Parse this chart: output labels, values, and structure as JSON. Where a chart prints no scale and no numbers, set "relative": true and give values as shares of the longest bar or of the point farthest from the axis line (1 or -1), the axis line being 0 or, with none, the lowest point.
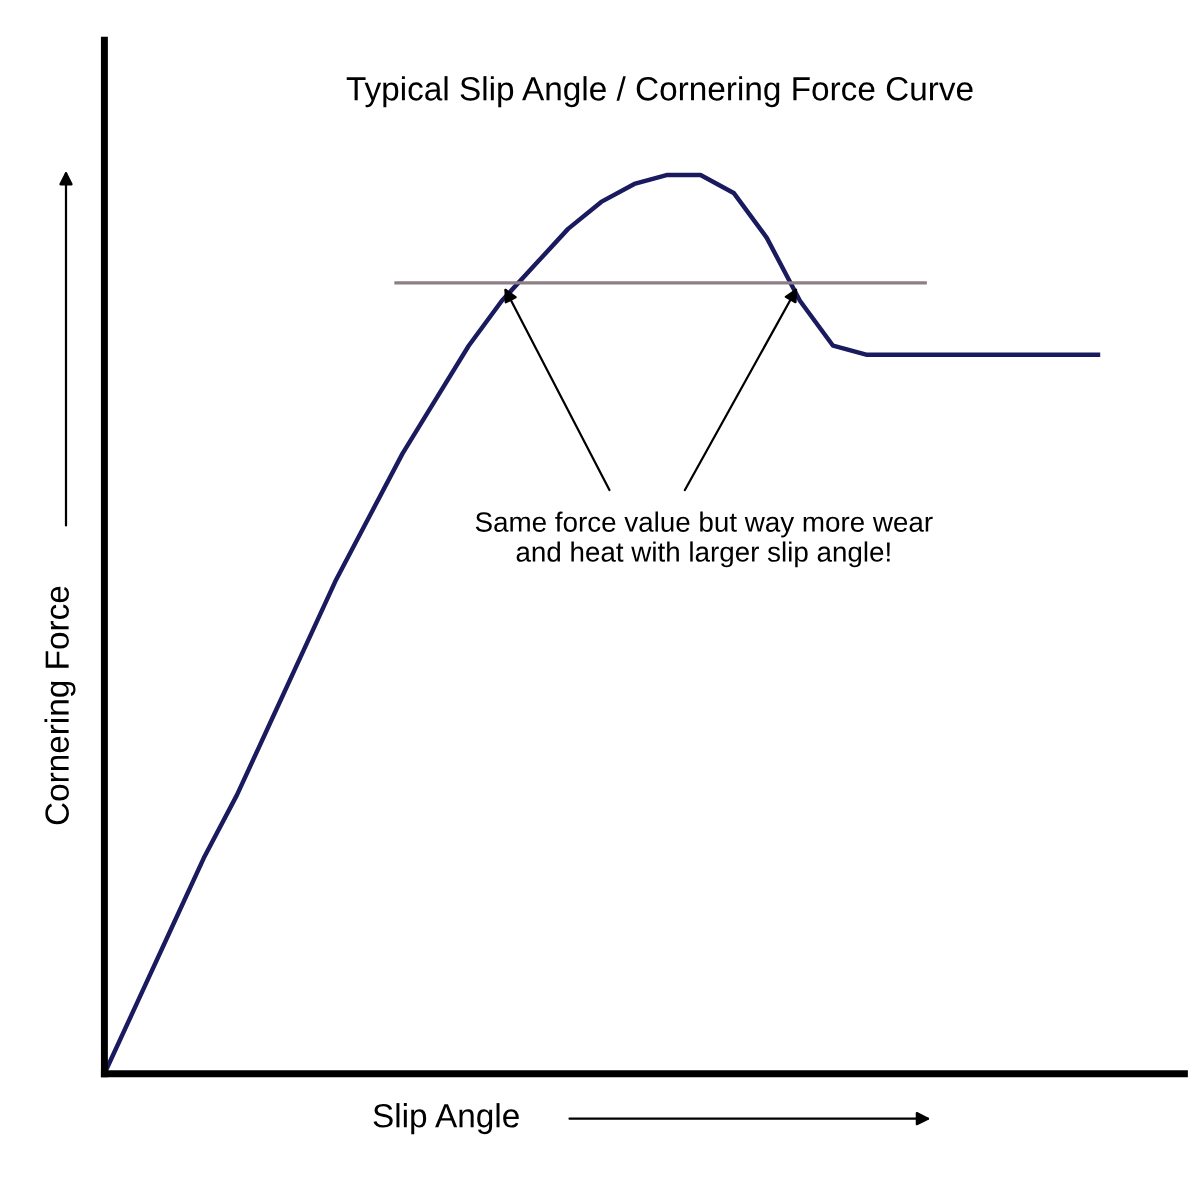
{
  "chart_data": {
    "type": "line",
    "title": "Typical Slip Angle / Cornering Force Curve",
    "xlabel": "Slip Angle",
    "ylabel": "Cornering Force",
    "relative": true,
    "marker": "none",
    "line_style": "solid",
    "categories": [
      null,
      null,
      null,
      null,
      null,
      null,
      null,
      null,
      null,
      null,
      null,
      null,
      null,
      null,
      null,
      null,
      null,
      null,
      null,
      null,
      null,
      null,
      null,
      null,
      null,
      null,
      null,
      null,
      null,
      null,
      null
    ],
    "series": [
      {
        "color": "#1a1a5e",
        "values": [
          0,
          0.08,
          0.16,
          0.24,
          0.31,
          0.39,
          0.47,
          0.55,
          0.62,
          0.69,
          0.75,
          0.81,
          0.86,
          0.9,
          0.94,
          0.97,
          0.99,
          1.0,
          1.0,
          0.98,
          0.93,
          0.86,
          0.81,
          0.8,
          0.8,
          0.8,
          0.8,
          0.8,
          0.8,
          0.8,
          0.8
        ]
      }
    ],
    "ref_lines": [
      {
        "axis": "y",
        "value": 0.88,
        "color": "#8c7f86"
      }
    ],
    "annotations": [
      "Same force value but way more wear\nand heat with larger slip angle!"
    ]
  }
}
